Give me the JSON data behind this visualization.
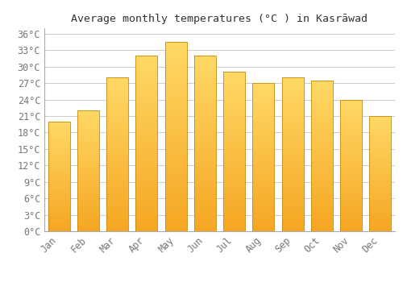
{
  "title": "Average monthly temperatures (°C ) in Kasrāwad",
  "months": [
    "Jan",
    "Feb",
    "Mar",
    "Apr",
    "May",
    "Jun",
    "Jul",
    "Aug",
    "Sep",
    "Oct",
    "Nov",
    "Dec"
  ],
  "values": [
    20,
    22,
    28,
    32,
    34.5,
    32,
    29,
    27,
    28,
    27.5,
    24,
    21
  ],
  "bar_color_bottom": "#F5A623",
  "bar_color_top": "#FFD966",
  "bar_edge_color": "#C8870A",
  "background_color": "#FFFFFF",
  "grid_color": "#CCCCCC",
  "text_color": "#777777",
  "title_color": "#333333",
  "ylim": [
    0,
    37
  ],
  "yticks": [
    0,
    3,
    6,
    9,
    12,
    15,
    18,
    21,
    24,
    27,
    30,
    33,
    36
  ],
  "title_fontsize": 9.5,
  "tick_fontsize": 8.5,
  "bar_width": 0.75
}
